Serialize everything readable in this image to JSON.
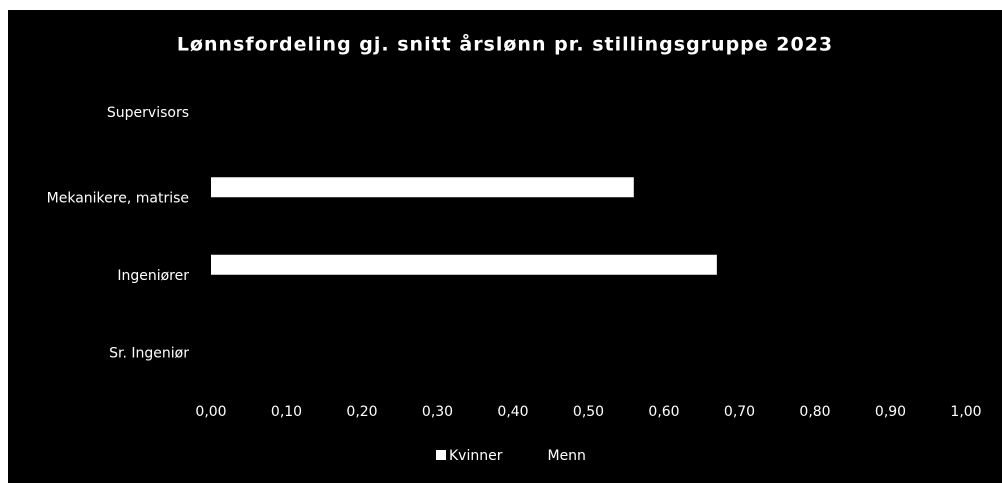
{
  "chart_data": {
    "type": "barh",
    "title": "Lønnsfordeling gj. snitt årslønn pr. stillingsgruppe 2023",
    "categories": [
      "Supervisors",
      "Mekanikere, matrise",
      "Ingeniører",
      "Sr. Ingeniør"
    ],
    "series": [
      {
        "name": "Kvinner",
        "color": "#ffffff",
        "values": [
          0,
          0.56,
          0.67,
          0
        ]
      },
      {
        "name": "Menn",
        "color": "#000000",
        "values": [
          0,
          0,
          0,
          0
        ]
      }
    ],
    "xlim": [
      0,
      1
    ],
    "xticks": [
      {
        "value": 0,
        "label": "0,00"
      },
      {
        "value": 0.1,
        "label": "0,10"
      },
      {
        "value": 0.2,
        "label": "0,20"
      },
      {
        "value": 0.3,
        "label": "0,30"
      },
      {
        "value": 0.4,
        "label": "0,40"
      },
      {
        "value": 0.5,
        "label": "0,50"
      },
      {
        "value": 0.6,
        "label": "0,60"
      },
      {
        "value": 0.7,
        "label": "0,70"
      },
      {
        "value": 0.8,
        "label": "0,80"
      },
      {
        "value": 0.9,
        "label": "0,90"
      },
      {
        "value": 1,
        "label": "1,00"
      }
    ],
    "grid": false,
    "legend": "bottom"
  }
}
